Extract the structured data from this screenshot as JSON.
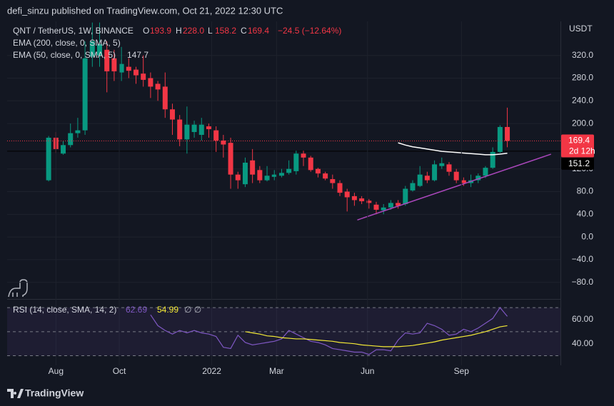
{
  "header": {
    "publisher": "defi_sinzu published on TradingView.com, Oct 21, 2022 12:30 UTC"
  },
  "chart_data": [
    {
      "type": "candlestick",
      "symbol": "QNT / TetherUS, 1W, BINANCE",
      "ohlc_legend": [
        [
          "O",
          "193.9"
        ],
        [
          "H",
          "228.0"
        ],
        [
          "L",
          "158.2"
        ],
        [
          "C",
          "169.4"
        ]
      ],
      "change": "−24.5 (−12.64%)",
      "currency": "USDT",
      "countdown": "2d 12h",
      "x": [
        0,
        1,
        2,
        3,
        4,
        5,
        6,
        7,
        8,
        9,
        10,
        11,
        12,
        13,
        14,
        15,
        16,
        17,
        18,
        19,
        20,
        21,
        22,
        23,
        24,
        25,
        26,
        27,
        28,
        29,
        30,
        31,
        32,
        33,
        34,
        35,
        36,
        37,
        38,
        39,
        40,
        41,
        42,
        43,
        44,
        45,
        46,
        47,
        48,
        49,
        50,
        51,
        52,
        53,
        54,
        55,
        56,
        57,
        58,
        59,
        60,
        61,
        62,
        63
      ],
      "open": [
        100,
        175,
        147,
        162,
        183,
        188,
        318,
        320,
        330,
        315,
        290,
        300,
        295,
        288,
        280,
        270,
        265,
        225,
        207,
        172,
        185,
        180,
        195,
        188,
        170,
        166,
        110,
        93,
        135,
        118,
        100,
        106,
        108,
        113,
        116,
        147,
        140,
        120,
        112,
        102,
        95,
        80,
        72,
        68,
        64,
        57,
        47,
        52,
        60,
        58,
        82,
        90,
        108,
        100,
        125,
        128,
        115,
        100,
        95,
        100,
        108,
        122,
        150,
        193.9
      ],
      "high": [
        178,
        185,
        170,
        200,
        210,
        345,
        378,
        378,
        345,
        330,
        335,
        315,
        300,
        320,
        290,
        275,
        290,
        235,
        215,
        230,
        205,
        210,
        200,
        195,
        180,
        175,
        115,
        140,
        155,
        125,
        125,
        118,
        120,
        135,
        152,
        152,
        143,
        122,
        115,
        110,
        100,
        85,
        78,
        72,
        67,
        62,
        58,
        65,
        65,
        90,
        100,
        125,
        115,
        135,
        140,
        132,
        120,
        105,
        110,
        112,
        125,
        158,
        197,
        228
      ],
      "low": [
        98,
        148,
        145,
        158,
        175,
        180,
        300,
        300,
        255,
        275,
        275,
        280,
        270,
        265,
        245,
        240,
        210,
        180,
        160,
        147,
        175,
        170,
        175,
        150,
        140,
        85,
        85,
        88,
        95,
        95,
        98,
        100,
        105,
        110,
        110,
        125,
        115,
        105,
        100,
        85,
        72,
        45,
        55,
        58,
        50,
        40,
        40,
        48,
        50,
        55,
        80,
        88,
        95,
        98,
        120,
        108,
        95,
        90,
        88,
        95,
        104,
        120,
        148,
        158.2
      ],
      "close": [
        175,
        155,
        162,
        183,
        188,
        315,
        345,
        340,
        292,
        292,
        305,
        293,
        285,
        277,
        265,
        260,
        225,
        207,
        172,
        198,
        198,
        198,
        190,
        170,
        163,
        110,
        100,
        131,
        110,
        100,
        108,
        110,
        113,
        120,
        147,
        140,
        118,
        112,
        103,
        95,
        78,
        70,
        65,
        63,
        60,
        48,
        52,
        60,
        55,
        85,
        95,
        110,
        100,
        128,
        130,
        115,
        100,
        95,
        100,
        108,
        122,
        150,
        193.9,
        169.4
      ],
      "up_color": "#089981",
      "down_color": "#f23645",
      "xlim": [
        -5.7,
        70.3
      ],
      "xticks": [
        {
          "value": 1,
          "label": "Aug"
        },
        {
          "value": 9.7,
          "label": "Oct"
        },
        {
          "value": 22.4,
          "label": "2022"
        },
        {
          "value": 31.3,
          "label": "Mar"
        },
        {
          "value": 43.8,
          "label": "Jun"
        },
        {
          "value": 56.7,
          "label": "Sep"
        }
      ],
      "ylim": [
        -108,
        380
      ],
      "yticks": [
        {
          "value": 320,
          "label": "320.0"
        },
        {
          "value": 280,
          "label": "280.0"
        },
        {
          "value": 240,
          "label": "240.0"
        },
        {
          "value": 200,
          "label": "200.0"
        },
        {
          "value": 120,
          "label": "120.0"
        },
        {
          "value": 80,
          "label": "80.0"
        },
        {
          "value": 40,
          "label": "40.0"
        },
        {
          "value": 0,
          "label": "0.0"
        },
        {
          "value": -40,
          "label": "−40.0"
        },
        {
          "value": -80,
          "label": "−80.0"
        }
      ],
      "grid": true,
      "indicators": [
        {
          "name": "EMA (200, close, 0, SMA, 5)"
        },
        {
          "name": "EMA (50, close, 0, SMA, 5)",
          "color": "#ffffff",
          "last_label": "147.7",
          "values": [
            null,
            null,
            null,
            null,
            null,
            null,
            null,
            null,
            null,
            null,
            null,
            null,
            null,
            null,
            null,
            null,
            null,
            null,
            null,
            null,
            null,
            null,
            null,
            null,
            null,
            null,
            null,
            null,
            null,
            null,
            null,
            null,
            null,
            null,
            null,
            null,
            null,
            null,
            null,
            null,
            null,
            null,
            null,
            null,
            null,
            null,
            null,
            null,
            166,
            162,
            159,
            157,
            155,
            153,
            151,
            150,
            149,
            148,
            147,
            146,
            145,
            145,
            146,
            147.7
          ]
        }
      ],
      "trendline": {
        "color": "#ab47bc",
        "x": [
          42.4,
          69
        ],
        "y": [
          30,
          146
        ]
      },
      "level": 151.2
    },
    {
      "type": "line",
      "title": "RSI (14, close, SMA, 14, 2)",
      "extra": "∅ ∅",
      "x": [
        0,
        1,
        2,
        3,
        4,
        5,
        6,
        7,
        8,
        9,
        10,
        11,
        12,
        13,
        14,
        15,
        16,
        17,
        18,
        19,
        20,
        21,
        22,
        23,
        24,
        25,
        26,
        27,
        28,
        29,
        30,
        31,
        32,
        33,
        34,
        35,
        36,
        37,
        38,
        39,
        40,
        41,
        42,
        43,
        44,
        45,
        46,
        47,
        48,
        49,
        50,
        51,
        52,
        53,
        54,
        55,
        56,
        57,
        58,
        59,
        60,
        61,
        62,
        63
      ],
      "xlim": [
        -5.7,
        70.3
      ],
      "series": [
        {
          "color": "#7e57c2",
          "last_label": "62.69",
          "values": [
            null,
            null,
            null,
            null,
            null,
            null,
            null,
            null,
            null,
            null,
            null,
            null,
            null,
            null,
            64,
            55,
            51,
            48,
            51,
            49,
            51,
            49,
            48,
            46,
            37,
            36,
            47,
            41,
            39,
            40,
            41,
            42,
            44,
            51,
            48,
            45,
            42,
            41,
            39,
            36,
            35,
            34,
            33,
            33,
            31,
            35,
            35,
            34,
            43,
            49,
            48,
            49,
            57,
            55,
            52,
            47,
            48,
            52,
            50,
            53,
            57,
            61,
            70,
            62.69
          ]
        },
        {
          "color": "#f5eb36",
          "last_label": "54.99",
          "values": [
            null,
            null,
            null,
            null,
            null,
            null,
            null,
            null,
            null,
            null,
            null,
            null,
            null,
            null,
            null,
            null,
            null,
            null,
            null,
            null,
            null,
            null,
            null,
            null,
            null,
            null,
            null,
            50,
            49,
            48,
            46.5,
            46,
            45,
            44.5,
            44,
            44,
            43.5,
            43,
            42.5,
            42,
            41,
            40.5,
            40,
            39,
            38.5,
            38,
            37.5,
            37.5,
            37.5,
            38,
            38.5,
            39.5,
            40.5,
            41.5,
            43,
            44,
            45,
            46,
            47,
            48.5,
            50,
            52,
            54,
            54.99
          ]
        }
      ],
      "ylim": [
        22,
        76
      ],
      "yticks": [
        {
          "value": 60,
          "label": "60.00"
        },
        {
          "value": 40,
          "label": "40.00"
        }
      ],
      "bands": [
        70,
        50,
        30
      ]
    }
  ],
  "footer": {
    "brand": "TradingView"
  }
}
